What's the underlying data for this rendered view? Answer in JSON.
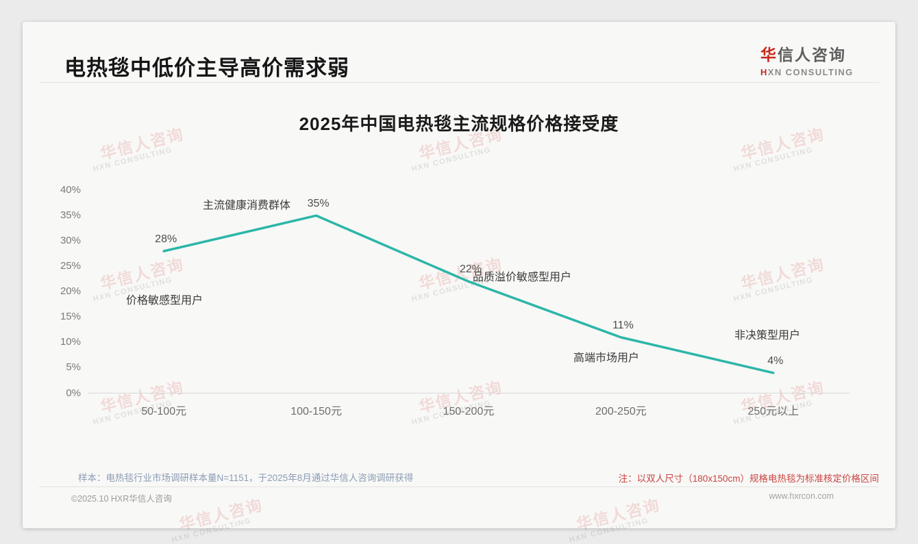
{
  "header": {
    "title": "电热毯中低价主导高价需求弱",
    "logo_cn_accent": "华",
    "logo_cn_rest": "信人咨询",
    "logo_en_accent": "H",
    "logo_en_rest": "XN CONSULTING"
  },
  "watermark": {
    "cn": "华信人咨询",
    "en": "HXN CONSULTING"
  },
  "chart_data": {
    "type": "line",
    "title": "2025年中国电热毯主流规格价格接受度",
    "categories": [
      "50-100元",
      "100-150元",
      "150-200元",
      "200-250元",
      "250元以上"
    ],
    "values": [
      28,
      35,
      22,
      11,
      4
    ],
    "value_labels": [
      "28%",
      "35%",
      "22%",
      "11%",
      "4%"
    ],
    "annotations": [
      "价格敏感型用户",
      "主流健康消费群体",
      "品质溢价敏感型用户",
      "高端市场用户",
      "非决策型用户"
    ],
    "xlabel": "",
    "ylabel": "",
    "ylim": [
      0,
      40
    ],
    "ytick_step": 5,
    "ytick_labels": [
      "0%",
      "5%",
      "10%",
      "15%",
      "20%",
      "25%",
      "30%",
      "35%",
      "40%"
    ],
    "grid": false,
    "legend": false,
    "line_color": "#2cb6a8"
  },
  "footer": {
    "sample_note": "样本：电热毯行业市场调研样本量N=1151，于2025年8月通过华信人咨询调研获得",
    "price_note": "注：以双人尺寸（180x150cm）规格电热毯为标准核定价格区间",
    "copyright": "©2025.10 HXR华信人咨询",
    "website": "www.hxrcon.com"
  },
  "colors": {
    "line_teal": "#2cb6a8",
    "brand_red": "#c5281c",
    "note_red": "#c94540",
    "axis_text": "#7a7a7a",
    "sample_note_text": "#8c9cb4",
    "card_background": "#f8f8f7",
    "page_background": "#ebebeb"
  }
}
